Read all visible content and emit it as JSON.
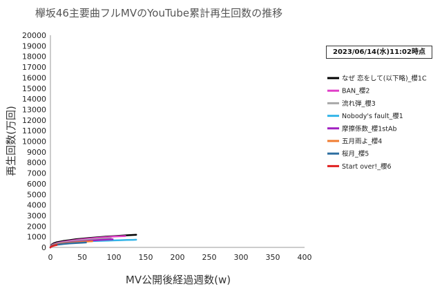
{
  "timestamp": "2023/06/14(水)11:02時点",
  "chart_data": {
    "type": "line",
    "title": "欅坂46主要曲フルMVのYouTube累計再生回数の推移",
    "xlabel": "MV公開後経過週数(w)",
    "ylabel": "再生回数(万回)",
    "xlim": [
      0,
      400
    ],
    "ylim": [
      0,
      20000
    ],
    "xticks": [
      "0",
      "50",
      "100",
      "150",
      "200",
      "250",
      "300",
      "350",
      "400"
    ],
    "yticks": [
      "0",
      "1000",
      "2000",
      "3000",
      "4000",
      "5000",
      "6000",
      "7000",
      "8000",
      "9000",
      "10000",
      "11000",
      "12000",
      "13000",
      "14000",
      "15000",
      "16000",
      "17000",
      "18000",
      "19000",
      "20000"
    ],
    "grid": false,
    "legend_position": "right",
    "series": [
      {
        "name": "なぜ 恋をして(以下略)_櫻1C",
        "color": "#000000",
        "points": [
          [
            0,
            0
          ],
          [
            2,
            260
          ],
          [
            5,
            380
          ],
          [
            10,
            480
          ],
          [
            20,
            600
          ],
          [
            30,
            680
          ],
          [
            40,
            760
          ],
          [
            50,
            820
          ],
          [
            60,
            880
          ],
          [
            70,
            930
          ],
          [
            80,
            980
          ],
          [
            90,
            1020
          ],
          [
            100,
            1060
          ],
          [
            110,
            1100
          ],
          [
            120,
            1140
          ],
          [
            130,
            1170
          ],
          [
            135,
            1190
          ]
        ]
      },
      {
        "name": "BAN_櫻2",
        "color": "#e040c8",
        "points": [
          [
            0,
            0
          ],
          [
            2,
            200
          ],
          [
            5,
            300
          ],
          [
            10,
            400
          ],
          [
            20,
            520
          ],
          [
            30,
            610
          ],
          [
            40,
            690
          ],
          [
            50,
            760
          ],
          [
            60,
            820
          ],
          [
            70,
            880
          ],
          [
            80,
            930
          ],
          [
            90,
            980
          ],
          [
            100,
            1020
          ],
          [
            110,
            1050
          ],
          [
            118,
            1070
          ]
        ]
      },
      {
        "name": "流れ弾_櫻3",
        "color": "#a8a8a8",
        "points": [
          [
            0,
            0
          ],
          [
            2,
            180
          ],
          [
            5,
            270
          ],
          [
            10,
            360
          ],
          [
            20,
            460
          ],
          [
            30,
            540
          ],
          [
            40,
            610
          ],
          [
            50,
            670
          ],
          [
            60,
            720
          ],
          [
            70,
            760
          ],
          [
            80,
            800
          ],
          [
            90,
            840
          ],
          [
            95,
            860
          ]
        ]
      },
      {
        "name": "Nobody's fault_櫻1",
        "color": "#33b5e8",
        "points": [
          [
            0,
            0
          ],
          [
            2,
            160
          ],
          [
            5,
            240
          ],
          [
            10,
            320
          ],
          [
            20,
            400
          ],
          [
            30,
            460
          ],
          [
            40,
            510
          ],
          [
            50,
            550
          ],
          [
            60,
            580
          ],
          [
            70,
            600
          ],
          [
            80,
            620
          ],
          [
            90,
            640
          ],
          [
            100,
            660
          ],
          [
            110,
            680
          ],
          [
            120,
            700
          ],
          [
            130,
            710
          ],
          [
            135,
            720
          ]
        ]
      },
      {
        "name": "摩擦係数_櫻1stAb",
        "color": "#a020c0",
        "points": [
          [
            0,
            0
          ],
          [
            2,
            150
          ],
          [
            5,
            230
          ],
          [
            10,
            310
          ],
          [
            20,
            400
          ],
          [
            30,
            470
          ],
          [
            40,
            530
          ],
          [
            50,
            580
          ],
          [
            60,
            630
          ],
          [
            70,
            670
          ],
          [
            80,
            710
          ],
          [
            90,
            740
          ],
          [
            98,
            760
          ]
        ]
      },
      {
        "name": "五月雨よ_櫻4",
        "color": "#f07c30",
        "points": [
          [
            0,
            0
          ],
          [
            2,
            150
          ],
          [
            5,
            220
          ],
          [
            10,
            290
          ],
          [
            20,
            370
          ],
          [
            30,
            430
          ],
          [
            40,
            480
          ],
          [
            50,
            520
          ],
          [
            60,
            560
          ],
          [
            66,
            580
          ]
        ]
      },
      {
        "name": "桜月_櫻5",
        "color": "#2e6fa0",
        "points": [
          [
            0,
            0
          ],
          [
            2,
            130
          ],
          [
            5,
            190
          ],
          [
            10,
            250
          ],
          [
            20,
            320
          ],
          [
            30,
            370
          ],
          [
            40,
            410
          ],
          [
            50,
            440
          ],
          [
            56,
            460
          ]
        ]
      },
      {
        "name": "Start over!_櫻6",
        "color": "#e02020",
        "points": [
          [
            0,
            0
          ],
          [
            1,
            60
          ],
          [
            2,
            100
          ],
          [
            4,
            140
          ],
          [
            6,
            170
          ],
          [
            8,
            200
          ],
          [
            10,
            220
          ]
        ]
      }
    ]
  }
}
